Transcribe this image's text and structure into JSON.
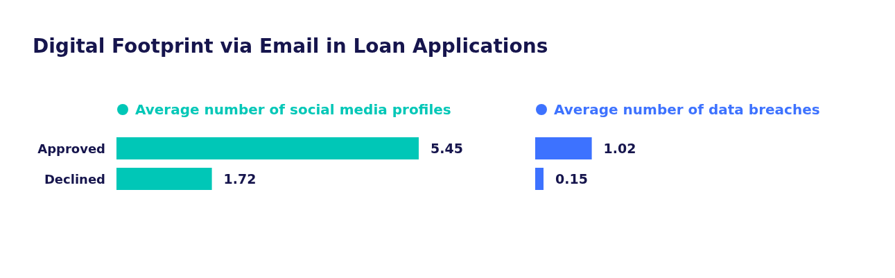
{
  "chart_data": [
    {
      "type": "bar",
      "orientation": "horizontal",
      "title": "Digital Footprint via Email in Loan Applications",
      "categories": [
        "Approved",
        "Declined"
      ],
      "legend": "top",
      "data_labels": true,
      "series": [
        {
          "name": "Average number of social media profiles",
          "color": "#00c7b7",
          "values": [
            5.45,
            1.72
          ]
        }
      ]
    },
    {
      "type": "bar",
      "orientation": "horizontal",
      "categories": [
        null,
        null
      ],
      "legend": "top",
      "data_labels": true,
      "series": [
        {
          "name": "Average number of data breaches",
          "color": "#3d72ff",
          "values": [
            1.02,
            0.15
          ]
        }
      ]
    }
  ]
}
